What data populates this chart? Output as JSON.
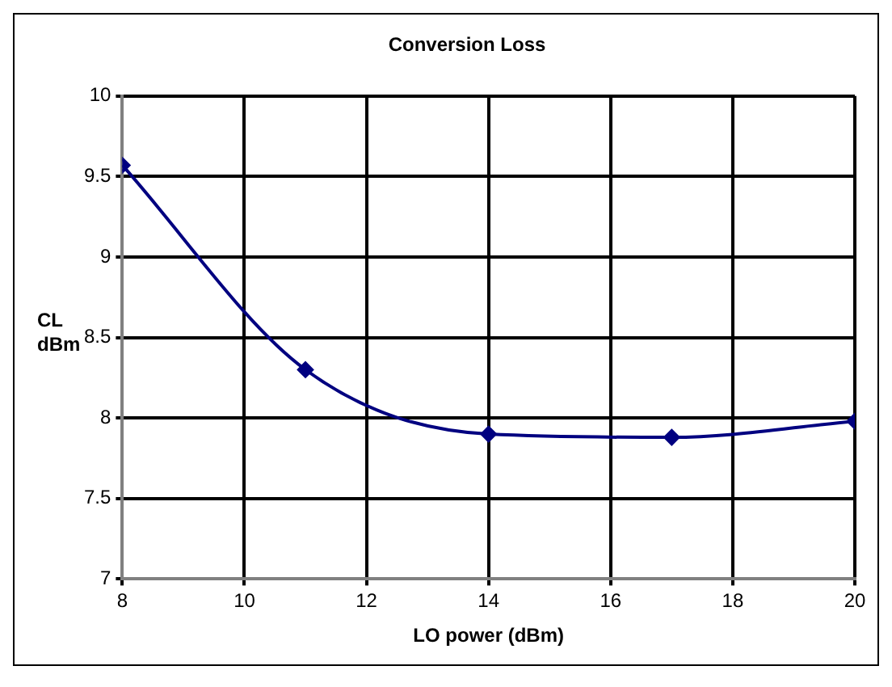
{
  "chart_data": {
    "type": "line",
    "title": "Conversion Loss",
    "xlabel": "LO power (dBm)",
    "ylabel": "CL dBm",
    "x": [
      8,
      11,
      14,
      17,
      20
    ],
    "series": [
      {
        "color": "#000080",
        "values": [
          9.57,
          8.3,
          7.9,
          7.88,
          7.98
        ]
      }
    ],
    "xlim": [
      8,
      20
    ],
    "xticks": [
      8,
      10,
      12,
      14,
      16,
      18,
      20
    ],
    "ylim": [
      7,
      10
    ],
    "yticks": [
      7,
      7.5,
      8,
      8.5,
      9,
      9.5,
      10
    ],
    "grid": true,
    "legend": false,
    "marker": "diamond",
    "line_style": "solid"
  }
}
